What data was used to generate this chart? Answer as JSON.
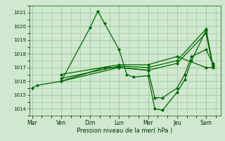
{
  "background_color": "#cfe8cf",
  "grid_color": "#aaccaa",
  "line_color": "#006600",
  "xlabel": "Pression niveau de la mer( hPa )",
  "ylim": [
    1013.5,
    1021.5
  ],
  "yticks": [
    1014,
    1015,
    1016,
    1017,
    1018,
    1019,
    1020,
    1021
  ],
  "x_day_labels": [
    "Mar",
    "Ven",
    "Dim",
    "Lun",
    "Mer",
    "Jeu",
    "Sam"
  ],
  "x_day_positions": [
    0,
    3,
    6,
    9,
    12,
    15,
    18
  ],
  "xlim": [
    -0.3,
    19.5
  ],
  "series": [
    {
      "x": [
        0,
        0.5,
        3,
        6,
        6.8,
        7.5,
        9,
        9.8,
        10.5,
        12,
        12.7,
        13.5,
        15,
        15.8,
        16.5,
        18,
        18.7
      ],
      "y": [
        1015.5,
        1015.7,
        1016.0,
        1019.9,
        1021.1,
        1020.2,
        1018.3,
        1016.5,
        1016.3,
        1016.4,
        1014.0,
        1013.9,
        1015.2,
        1016.1,
        1017.5,
        1019.7,
        1017.1
      ]
    },
    {
      "x": [
        3,
        7.5,
        9,
        12,
        12.7,
        13.5,
        15,
        15.8,
        16.5,
        18,
        18.7
      ],
      "y": [
        1016.0,
        1017.0,
        1017.0,
        1016.8,
        1014.8,
        1014.8,
        1015.5,
        1016.5,
        1017.8,
        1018.3,
        1017.3
      ]
    },
    {
      "x": [
        3,
        9,
        12,
        15,
        18,
        18.7
      ],
      "y": [
        1016.0,
        1017.0,
        1016.8,
        1017.3,
        1019.5,
        1017.1
      ]
    },
    {
      "x": [
        3,
        9,
        12,
        15,
        18,
        18.7
      ],
      "y": [
        1016.2,
        1017.1,
        1017.0,
        1017.5,
        1019.8,
        1017.2
      ]
    },
    {
      "x": [
        3,
        9,
        12,
        15,
        18,
        18.7
      ],
      "y": [
        1016.5,
        1017.2,
        1017.2,
        1017.8,
        1017.0,
        1017.0
      ]
    }
  ]
}
